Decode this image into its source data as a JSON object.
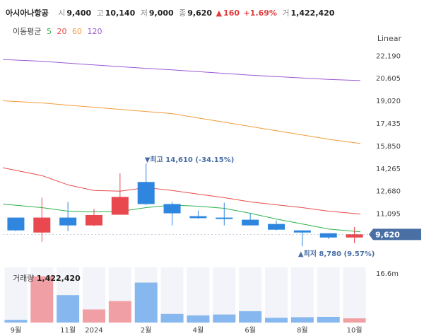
{
  "header": {
    "name": "아시아나항공",
    "open_label": "시",
    "open": "9,400",
    "high_label": "고",
    "high": "10,140",
    "low_label": "저",
    "low": "9,000",
    "close_label": "종",
    "close": "9,620",
    "change_arrow": "▲",
    "change": "160",
    "change_pct": "+1.69%",
    "vol_label": "거",
    "volume": "1,422,420"
  },
  "ma_legend": {
    "title": "이동평균",
    "periods": [
      {
        "label": "5",
        "color": "#2bb24c"
      },
      {
        "label": "20",
        "color": "#e84b4b"
      },
      {
        "label": "60",
        "color": "#f59a3a"
      },
      {
        "label": "120",
        "color": "#9b59d6"
      }
    ]
  },
  "scale_label": "Linear",
  "colors": {
    "up": "#e8484e",
    "down": "#2e86de",
    "vol_up": "#f0a0a4",
    "vol_down": "#86b8ef",
    "badge": "#4a6fa5"
  },
  "current_price_label": "9,620",
  "annotations": {
    "high": {
      "text": "▼최고 14,610 (-34.15%)"
    },
    "low": {
      "text": "▲최저 8,780 (9.57%)"
    }
  },
  "volume_panel": {
    "label": "거래량",
    "value": "1,422,420",
    "tick": "16.6m"
  },
  "chart_data": {
    "type": "candlestick",
    "title": "아시아나항공",
    "ylim": [
      7600,
      23000
    ],
    "y_ticks": [
      "22,190",
      "20,605",
      "19,020",
      "17,435",
      "15,850",
      "14,265",
      "12,680",
      "11,095"
    ],
    "y_tick_values": [
      22190,
      20605,
      19020,
      17435,
      15850,
      14265,
      12680,
      11095
    ],
    "x_labels": [
      {
        "i": 0,
        "label": "9월"
      },
      {
        "i": 2,
        "label": "11월"
      },
      {
        "i": 3,
        "label": "2024"
      },
      {
        "i": 5,
        "label": "2월"
      },
      {
        "i": 7,
        "label": "4월"
      },
      {
        "i": 9,
        "label": "6월"
      },
      {
        "i": 11,
        "label": "8월"
      },
      {
        "i": 13,
        "label": "10월"
      }
    ],
    "candles": [
      {
        "o": 10800,
        "h": 10800,
        "l": 9850,
        "c": 9900
      },
      {
        "o": 9750,
        "h": 12200,
        "l": 9100,
        "c": 10800
      },
      {
        "o": 10800,
        "h": 11900,
        "l": 9850,
        "c": 10250
      },
      {
        "o": 10250,
        "h": 11400,
        "l": 10200,
        "c": 10980
      },
      {
        "o": 11000,
        "h": 13900,
        "l": 11000,
        "c": 12250
      },
      {
        "o": 13300,
        "h": 14610,
        "l": 11680,
        "c": 11750
      },
      {
        "o": 11750,
        "h": 11900,
        "l": 10250,
        "c": 11100
      },
      {
        "o": 10900,
        "h": 11300,
        "l": 10700,
        "c": 10760
      },
      {
        "o": 10800,
        "h": 11850,
        "l": 10250,
        "c": 10700
      },
      {
        "o": 10650,
        "h": 11100,
        "l": 10300,
        "c": 10250
      },
      {
        "o": 10350,
        "h": 10600,
        "l": 9900,
        "c": 9950
      },
      {
        "o": 9900,
        "h": 9900,
        "l": 8780,
        "c": 9750
      },
      {
        "o": 9700,
        "h": 9700,
        "l": 9300,
        "c": 9400
      },
      {
        "o": 9400,
        "h": 10140,
        "l": 9000,
        "c": 9620
      }
    ],
    "ma": [
      {
        "name": "5",
        "color": "#2bb24c",
        "values": [
          11750,
          11500,
          11250,
          11200,
          11230,
          11500,
          11680,
          11600,
          11450,
          11100,
          10700,
          10350,
          10000,
          9800
        ]
      },
      {
        "name": "20",
        "color": "#e84b4b",
        "values": [
          14300,
          13750,
          13100,
          12700,
          12650,
          12900,
          12700,
          12450,
          12200,
          11900,
          11700,
          11500,
          11250,
          11050
        ]
      },
      {
        "name": "60",
        "color": "#f59a3a",
        "values": [
          19000,
          18850,
          18700,
          18550,
          18400,
          18250,
          18100,
          17800,
          17500,
          17200,
          16900,
          16600,
          16300,
          16000
        ]
      },
      {
        "name": "120",
        "color": "#9b59d6",
        "values": [
          21900,
          21780,
          21650,
          21520,
          21400,
          21280,
          21170,
          21050,
          20930,
          20800,
          20700,
          20600,
          20500,
          20420
        ]
      }
    ],
    "volume": {
      "ylim": [
        0,
        18500
      ],
      "unit": "thousand shares",
      "values": [
        900,
        15500,
        9200,
        4400,
        7200,
        13400,
        2900,
        2400,
        2700,
        3800,
        1600,
        1800,
        1900,
        1422
      ]
    }
  }
}
